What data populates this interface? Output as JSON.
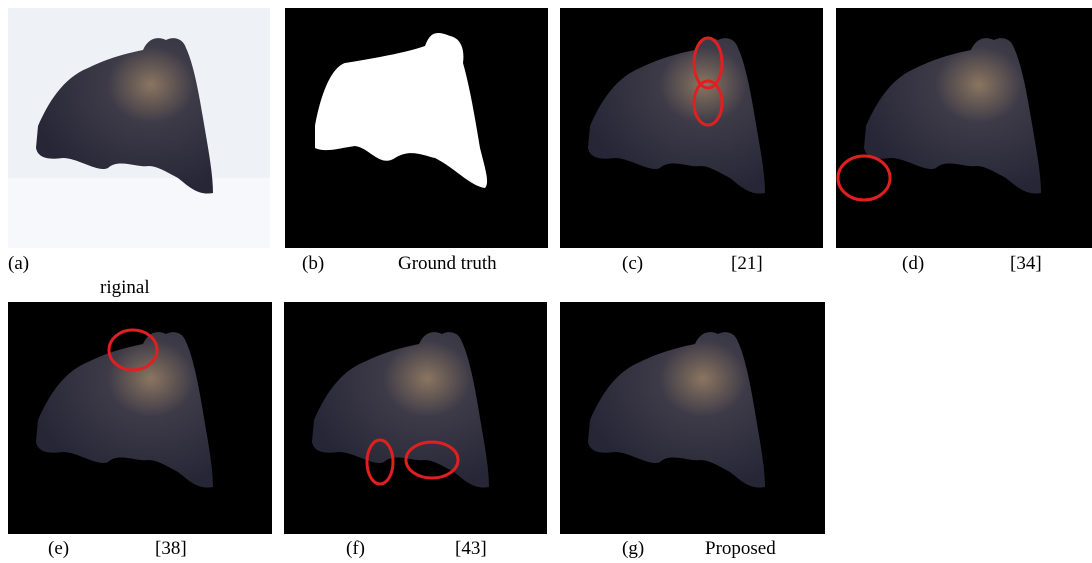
{
  "panels": [
    {
      "label": "(a)",
      "caption": "riginal"
    },
    {
      "label": "(b)",
      "caption": "Ground truth"
    },
    {
      "label": "(c)",
      "caption": "[21]"
    },
    {
      "label": "(d)",
      "caption": "[34]"
    },
    {
      "label": "(e)",
      "caption": "[38]"
    },
    {
      "label": "(f)",
      "caption": "[43]"
    },
    {
      "label": "(g)",
      "caption": "Proposed"
    }
  ]
}
